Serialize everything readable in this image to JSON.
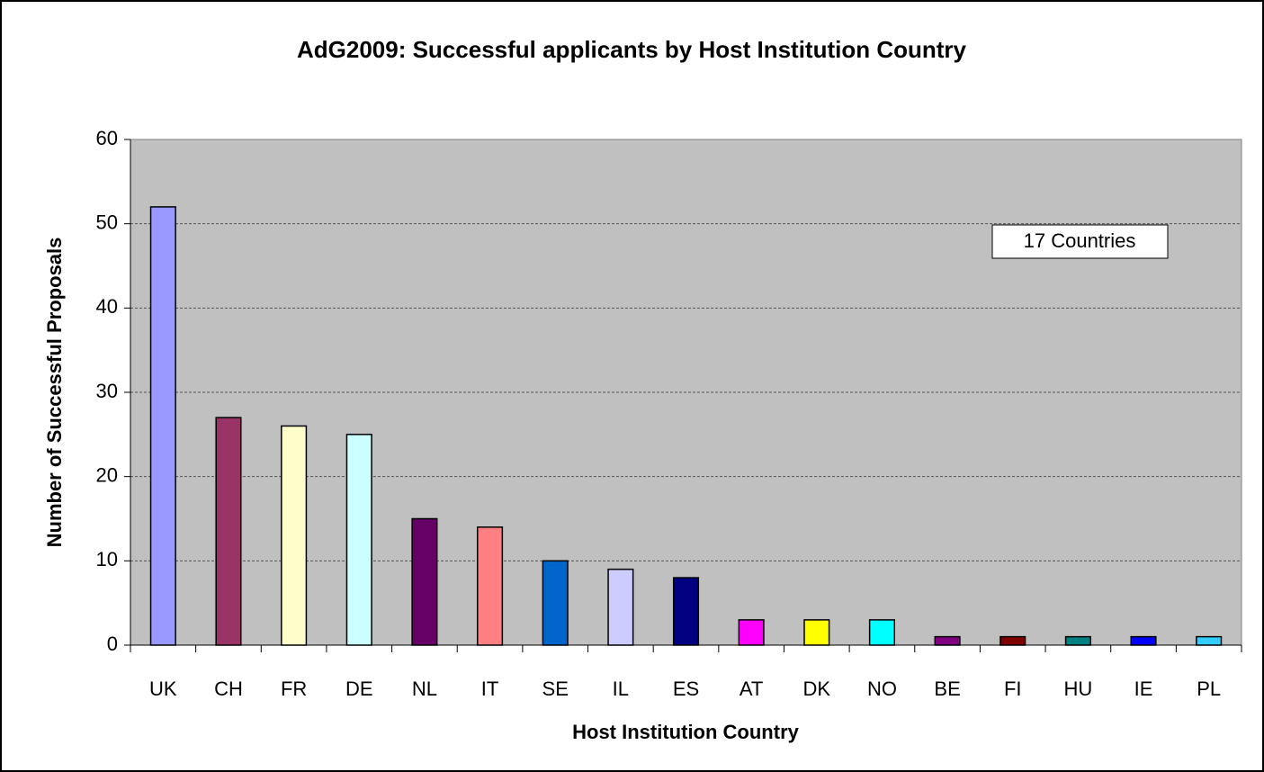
{
  "chart_data": {
    "type": "bar",
    "title": "AdG2009:  Successful applicants by Host Institution Country",
    "x_label": "Host Institution Country",
    "y_label": "Number of Successful Proposals",
    "annotation": "17 Countries",
    "categories": [
      "UK",
      "CH",
      "FR",
      "DE",
      "NL",
      "IT",
      "SE",
      "IL",
      "ES",
      "AT",
      "DK",
      "NO",
      "BE",
      "FI",
      "HU",
      "IE",
      "PL"
    ],
    "values": [
      52,
      27,
      26,
      25,
      15,
      14,
      10,
      9,
      8,
      3,
      3,
      3,
      1,
      1,
      1,
      1,
      1
    ],
    "colors": [
      "#9999ff",
      "#993366",
      "#ffffcc",
      "#ccffff",
      "#660066",
      "#ff8080",
      "#0066cc",
      "#ccccff",
      "#000080",
      "#ff00ff",
      "#ffff00",
      "#00ffff",
      "#800080",
      "#800000",
      "#008080",
      "#0000ff",
      "#33ccff"
    ],
    "ylim": [
      0,
      60
    ],
    "yticks": [
      0,
      10,
      20,
      30,
      40,
      50,
      60
    ],
    "grid": true
  }
}
